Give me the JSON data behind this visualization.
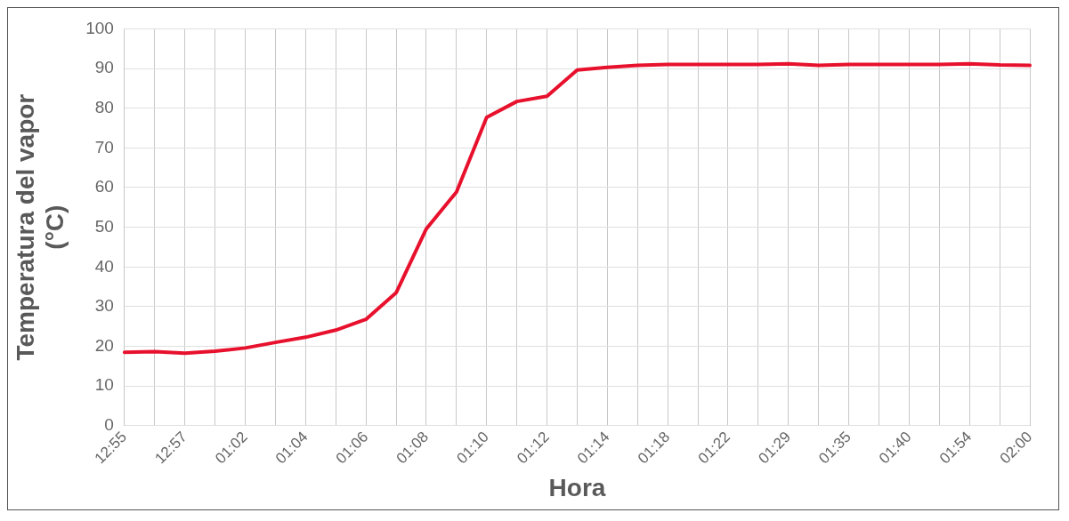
{
  "chart_data": {
    "type": "line",
    "xlabel": "Hora",
    "ylabel": "Temperatura del vapor\n(°C)",
    "categories": [
      "12:55",
      null,
      "12:57",
      null,
      "01:02",
      null,
      "01:04",
      null,
      "01:06",
      null,
      "01:08",
      null,
      "01:10",
      null,
      "01:12",
      null,
      "01:14",
      null,
      "01:18",
      null,
      "01:22",
      null,
      "01:29",
      null,
      "01:35",
      null,
      "01:40",
      null,
      "01:54",
      null,
      "02:00"
    ],
    "series": [
      {
        "color": "#e8112d",
        "values": [
          18.5,
          18.7,
          18.3,
          18.8,
          19.6,
          21,
          22.3,
          24.1,
          26.8,
          33.5,
          49.6,
          58.9,
          77.7,
          81.7,
          83,
          89.6,
          90.3,
          90.8,
          91,
          91,
          91,
          91,
          91.2,
          90.8,
          91,
          91,
          91,
          91,
          91.2,
          90.9,
          90.8
        ]
      }
    ],
    "ylim": [
      0,
      100
    ],
    "yticks": [
      0,
      10,
      20,
      30,
      40,
      50,
      60,
      70,
      80,
      90,
      100
    ],
    "grid": true,
    "legend": false,
    "marker": "none",
    "line_style": "solid"
  }
}
